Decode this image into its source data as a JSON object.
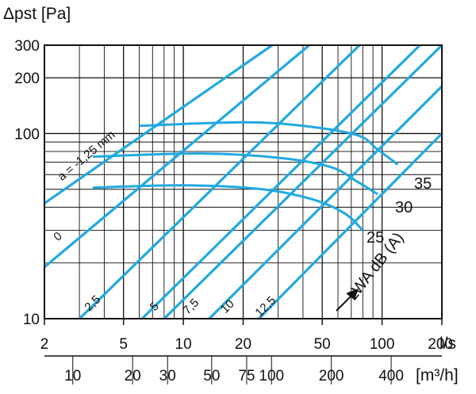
{
  "chart_data": {
    "type": "line",
    "x_scale": "log",
    "y_scale": "log",
    "xlim": [
      2,
      200
    ],
    "ylim": [
      10,
      300
    ],
    "grid": true,
    "ylabel": "Δpst [Pa]",
    "xlabel_top": "l/s",
    "xlabel_bottom": "[m³/h]",
    "y_ticks": [
      {
        "label": "300",
        "value": 300
      },
      {
        "label": "200",
        "value": 200
      },
      {
        "label": "100",
        "value": 100
      },
      {
        "label": "10",
        "value": 10
      }
    ],
    "x_ticks_ls": [
      {
        "label": "2",
        "value": 2
      },
      {
        "label": "5",
        "value": 5
      },
      {
        "label": "10",
        "value": 10
      },
      {
        "label": "20",
        "value": 20
      },
      {
        "label": "50",
        "value": 50
      },
      {
        "label": "100",
        "value": 100
      },
      {
        "label": "200",
        "value": 200
      }
    ],
    "x_ticks_m3h": [
      {
        "label": "10",
        "value": 10
      },
      {
        "label": "20",
        "value": 20
      },
      {
        "label": "30",
        "value": 30
      },
      {
        "label": "50",
        "value": 50
      },
      {
        "label": "75",
        "value": 75
      },
      {
        "label": "100",
        "value": 100
      },
      {
        "label": "200",
        "value": 200
      },
      {
        "label": "400",
        "value": 400
      }
    ],
    "setting_lines": [
      {
        "label": "a = -1,25 mm",
        "points": [
          [
            2,
            42
          ],
          [
            28,
            300
          ]
        ]
      },
      {
        "label": "0",
        "points": [
          [
            2,
            19
          ],
          [
            43,
            300
          ]
        ]
      },
      {
        "label": "2,5",
        "points": [
          [
            3,
            10
          ],
          [
            77,
            300
          ]
        ]
      },
      {
        "label": "5",
        "points": [
          [
            6.2,
            10
          ],
          [
            155,
            300
          ]
        ]
      },
      {
        "label": "7,5",
        "points": [
          [
            8,
            10
          ],
          [
            200,
            300
          ]
        ]
      },
      {
        "label": "10",
        "points": [
          [
            13.5,
            10
          ],
          [
            200,
            180
          ]
        ]
      },
      {
        "label": "12,5",
        "points": [
          [
            24,
            10
          ],
          [
            200,
            100
          ]
        ]
      }
    ],
    "sound_curves": [
      {
        "label": "35",
        "points": [
          [
            6,
            110
          ],
          [
            20,
            115
          ],
          [
            40,
            110
          ],
          [
            75,
            98
          ],
          [
            95,
            82
          ],
          [
            120,
            68
          ]
        ]
      },
      {
        "label": "30",
        "points": [
          [
            3.5,
            75
          ],
          [
            12,
            78
          ],
          [
            30,
            74
          ],
          [
            55,
            66
          ],
          [
            75,
            55
          ],
          [
            95,
            47
          ]
        ]
      },
      {
        "label": "25",
        "points": [
          [
            3.5,
            51
          ],
          [
            10,
            52.5
          ],
          [
            25,
            50
          ],
          [
            45,
            44
          ],
          [
            65,
            37
          ],
          [
            80,
            30
          ]
        ]
      }
    ],
    "sound_label": "LWA dB (A)"
  }
}
